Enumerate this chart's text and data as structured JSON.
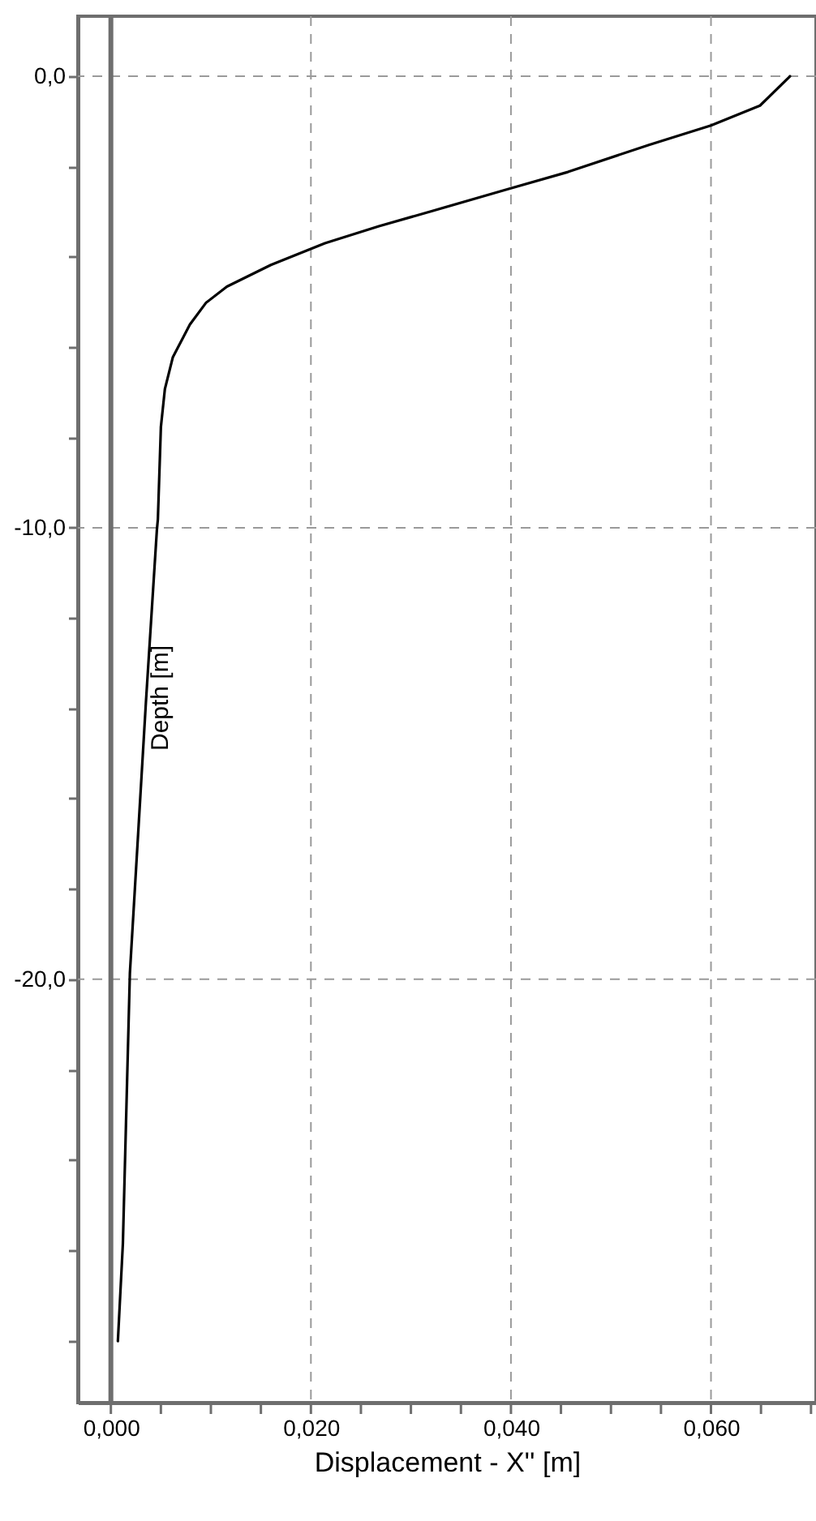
{
  "chart_data": {
    "type": "line",
    "xlabel": "Displacement - X'' [m]",
    "ylabel": "Depth [m]",
    "xlim": [
      -0.0033,
      0.0705
    ],
    "ylim": [
      -29.38,
      1.33
    ],
    "xticks": [
      {
        "value": 0,
        "label": "0,000"
      },
      {
        "value": 0.005,
        "label": null
      },
      {
        "value": 0.01,
        "label": null
      },
      {
        "value": 0.015,
        "label": null
      },
      {
        "value": 0.02,
        "label": "0,020"
      },
      {
        "value": 0.025,
        "label": null
      },
      {
        "value": 0.03,
        "label": null
      },
      {
        "value": 0.035,
        "label": null
      },
      {
        "value": 0.04,
        "label": "0,040"
      },
      {
        "value": 0.045,
        "label": null
      },
      {
        "value": 0.05,
        "label": null
      },
      {
        "value": 0.055,
        "label": null
      },
      {
        "value": 0.06,
        "label": "0,060"
      },
      {
        "value": 0.065,
        "label": null
      },
      {
        "value": 0.07,
        "label": null
      }
    ],
    "yticks": [
      {
        "value": 0,
        "label": "0,0"
      },
      {
        "value": -2,
        "label": null
      },
      {
        "value": -4,
        "label": null
      },
      {
        "value": -6,
        "label": null
      },
      {
        "value": -8,
        "label": null
      },
      {
        "value": -10,
        "label": "-10,0"
      },
      {
        "value": -12,
        "label": null
      },
      {
        "value": -14,
        "label": null
      },
      {
        "value": -16,
        "label": null
      },
      {
        "value": -18,
        "label": null
      },
      {
        "value": -20,
        "label": "-20,0"
      },
      {
        "value": -22,
        "label": null
      },
      {
        "value": -24,
        "label": null
      },
      {
        "value": -26,
        "label": null
      },
      {
        "value": -28,
        "label": null
      }
    ],
    "grid": true,
    "line_style": "solid",
    "marker": "none",
    "ref_lines": [
      {
        "axis": "x",
        "value": 0,
        "color": "#6e6e6e"
      }
    ],
    "series": [
      {
        "color": "#000000",
        "x": [
          0.0679,
          0.0649,
          0.06,
          0.0538,
          0.0457,
          0.0397,
          0.0322,
          0.0268,
          0.0214,
          0.016,
          0.0116,
          0.0095,
          0.0079,
          0.0062,
          0.0054,
          0.005,
          0.0047,
          0.0046,
          0.0035,
          0.0019,
          0.0012,
          0.0007
        ],
        "values": [
          0,
          -0.65,
          -1.09,
          -1.52,
          -2.12,
          -2.5,
          -2.98,
          -3.32,
          -3.7,
          -4.18,
          -4.66,
          -5.02,
          -5.5,
          -6.22,
          -6.93,
          -7.77,
          -9.81,
          -10.05,
          -13.88,
          -19.87,
          -25.86,
          -28.02
        ]
      }
    ]
  }
}
